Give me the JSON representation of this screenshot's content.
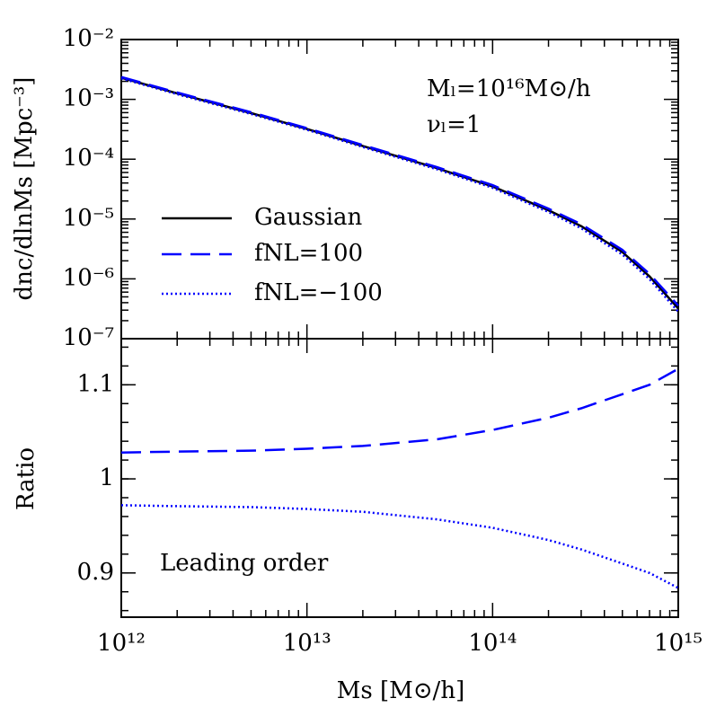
{
  "chart_data": [
    {
      "type": "line",
      "ylabel": "dnc/dlnMs [Mpc⁻³]",
      "log_x": true,
      "log_y": true,
      "xlim": [
        1000000000000.0,
        1000000000000000.0
      ],
      "ylim": [
        1e-07,
        0.01
      ],
      "yticks": [
        {
          "value": 0.01,
          "label": "10⁻²"
        },
        {
          "value": 0.001,
          "label": "10⁻³"
        },
        {
          "value": 0.0001,
          "label": "10⁻⁴"
        },
        {
          "value": 1e-05,
          "label": "10⁻⁵"
        },
        {
          "value": 1e-06,
          "label": "10⁻⁶"
        },
        {
          "value": 1e-07,
          "label": "10⁻⁷"
        }
      ],
      "annotations": [
        "Mₗ=10¹⁶M⊙/h",
        "νₗ=1"
      ],
      "legend": "center-left",
      "x": [
        1000000000000.0,
        2000000000000.0,
        5000000000000.0,
        10000000000000.0,
        20000000000000.0,
        50000000000000.0,
        100000000000000.0,
        200000000000000.0,
        300000000000000.0,
        500000000000000.0,
        700000000000000.0,
        1000000000000000.0
      ],
      "series": [
        {
          "name": "Gaussian",
          "color": "#000000",
          "style": "solid",
          "values": [
            0.0023,
            0.00126,
            0.00059,
            0.00032,
            0.000166,
            7.1e-05,
            3.5e-05,
            1.4e-05,
            7.6e-06,
            2.8e-06,
            1.1e-06,
            3.2e-07
          ]
        },
        {
          "name": "fNL=100",
          "color": "#0000ff",
          "style": "dashed",
          "values": [
            0.00236,
            0.0013,
            0.00061,
            0.00033,
            0.000172,
            7.4e-05,
            3.68e-05,
            1.49e-05,
            8.2e-06,
            3.05e-06,
            1.21e-06,
            3.57e-07
          ]
        },
        {
          "name": "fNL=−100",
          "color": "#0000ff",
          "style": "dotted",
          "values": [
            0.00224,
            0.00122,
            0.00057,
            0.00031,
            0.00016,
            6.8e-05,
            3.32e-05,
            1.31e-05,
            7e-06,
            2.55e-06,
            9.9e-07,
            2.83e-07
          ]
        }
      ]
    },
    {
      "type": "line",
      "ylabel": "Ratio",
      "xlabel": "Ms [M⊙/h]",
      "log_x": true,
      "xlim": [
        1000000000000.0,
        1000000000000000.0
      ],
      "ylim": [
        0.853,
        1.149
      ],
      "xticks": [
        {
          "value": 1000000000000.0,
          "label": "10¹²"
        },
        {
          "value": 10000000000000.0,
          "label": "10¹³"
        },
        {
          "value": 100000000000000.0,
          "label": "10¹⁴"
        },
        {
          "value": 1000000000000000.0,
          "label": "10¹⁵"
        }
      ],
      "yticks": [
        0.9,
        1,
        1.1
      ],
      "annotations": [
        "Leading order"
      ],
      "x": [
        1000000000000.0,
        2000000000000.0,
        5000000000000.0,
        10000000000000.0,
        20000000000000.0,
        50000000000000.0,
        100000000000000.0,
        200000000000000.0,
        300000000000000.0,
        500000000000000.0,
        700000000000000.0,
        1000000000000000.0
      ],
      "series": [
        {
          "color": "#0000ff",
          "style": "dashed",
          "values": [
            1.028,
            1.029,
            1.03,
            1.032,
            1.035,
            1.042,
            1.052,
            1.065,
            1.075,
            1.09,
            1.1,
            1.117
          ]
        },
        {
          "color": "#0000ff",
          "style": "dotted",
          "values": [
            0.972,
            0.971,
            0.97,
            0.968,
            0.965,
            0.957,
            0.948,
            0.935,
            0.925,
            0.91,
            0.9,
            0.884
          ]
        }
      ]
    }
  ]
}
